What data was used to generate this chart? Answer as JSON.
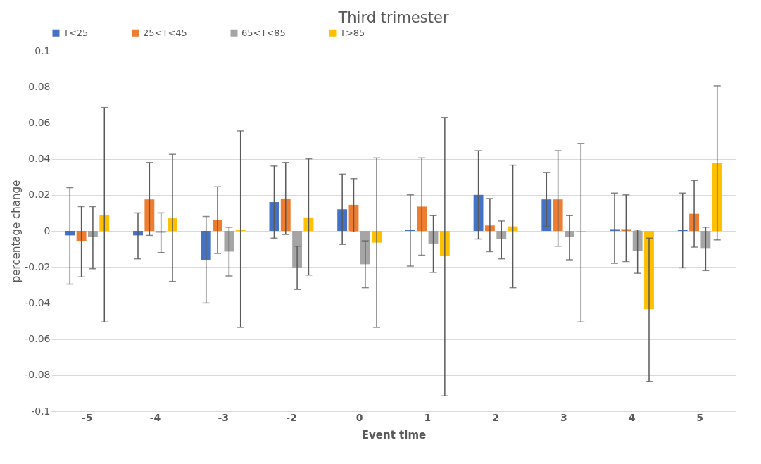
{
  "chart_data": {
    "type": "bar",
    "title": "Third  trimester",
    "xlabel": "Event time",
    "ylabel": "percentage change",
    "categories": [
      "-5",
      "-4",
      "-3",
      "-2",
      "0",
      "1",
      "2",
      "3",
      "4",
      "5"
    ],
    "series": [
      {
        "name": "T<25",
        "color": "#4472c4",
        "values": [
          -0.0025,
          -0.0025,
          -0.016,
          0.016,
          0.012,
          0.0005,
          0.02,
          0.0175,
          0.001,
          0.0005
        ],
        "errors": [
          [
            -0.0295,
            0.024
          ],
          [
            -0.0155,
            0.01
          ],
          [
            -0.04,
            0.008
          ],
          [
            -0.004,
            0.036
          ],
          [
            -0.0075,
            0.0315
          ],
          [
            -0.0195,
            0.02
          ],
          [
            -0.0045,
            0.0445
          ],
          [
            0.0025,
            0.0325
          ],
          [
            -0.018,
            0.021
          ],
          [
            -0.0205,
            0.021
          ]
        ]
      },
      {
        "name": "25<T<45",
        "color": "#ed7d31",
        "values": [
          -0.0055,
          0.0175,
          0.006,
          0.018,
          0.0145,
          0.0135,
          0.003,
          0.0175,
          0.001,
          0.0095
        ],
        "errors": [
          [
            -0.0255,
            0.0135
          ],
          [
            -0.0025,
            0.038
          ],
          [
            -0.0125,
            0.0245
          ],
          [
            -0.002,
            0.038
          ],
          [
            -0.0005,
            0.029
          ],
          [
            -0.0135,
            0.0405
          ],
          [
            -0.0115,
            0.018
          ],
          [
            -0.0085,
            0.0445
          ],
          [
            -0.017,
            0.02
          ],
          [
            -0.009,
            0.028
          ]
        ]
      },
      {
        "name": "65<T<85",
        "color": "#a5a5a5",
        "values": [
          -0.0035,
          -0.001,
          -0.0115,
          -0.0205,
          -0.0185,
          -0.007,
          -0.0045,
          -0.0035,
          -0.011,
          -0.0095
        ],
        "errors": [
          [
            -0.021,
            0.0135
          ],
          [
            -0.012,
            0.01
          ],
          [
            -0.025,
            0.002
          ],
          [
            -0.0325,
            -0.0085
          ],
          [
            -0.0315,
            -0.0055
          ],
          [
            -0.023,
            0.0085
          ],
          [
            -0.0155,
            0.0055
          ],
          [
            -0.016,
            0.0085
          ],
          [
            -0.0235,
            0.0005
          ],
          [
            -0.022,
            0.002
          ]
        ]
      },
      {
        "name": "T>85",
        "color": "#ffc000",
        "values": [
          0.009,
          0.007,
          0.0005,
          0.0075,
          -0.0065,
          -0.014,
          0.0025,
          -0.0005,
          -0.0435,
          0.0375
        ],
        "errors": [
          [
            -0.0505,
            0.0685
          ],
          [
            -0.028,
            0.0425
          ],
          [
            -0.0535,
            0.0555
          ],
          [
            -0.0245,
            0.04
          ],
          [
            -0.0535,
            0.0405
          ],
          [
            -0.0915,
            0.063
          ],
          [
            -0.0315,
            0.0365
          ],
          [
            -0.0505,
            0.0485
          ],
          [
            -0.0835,
            -0.004
          ],
          [
            -0.005,
            0.0805
          ]
        ]
      }
    ],
    "ylim": [
      -0.1,
      0.1
    ],
    "yticks": [
      -0.1,
      -0.08,
      -0.06,
      -0.04,
      -0.02,
      0,
      0.02,
      0.04,
      0.06,
      0.08,
      0.1
    ],
    "grid": "y",
    "legend": "top"
  }
}
